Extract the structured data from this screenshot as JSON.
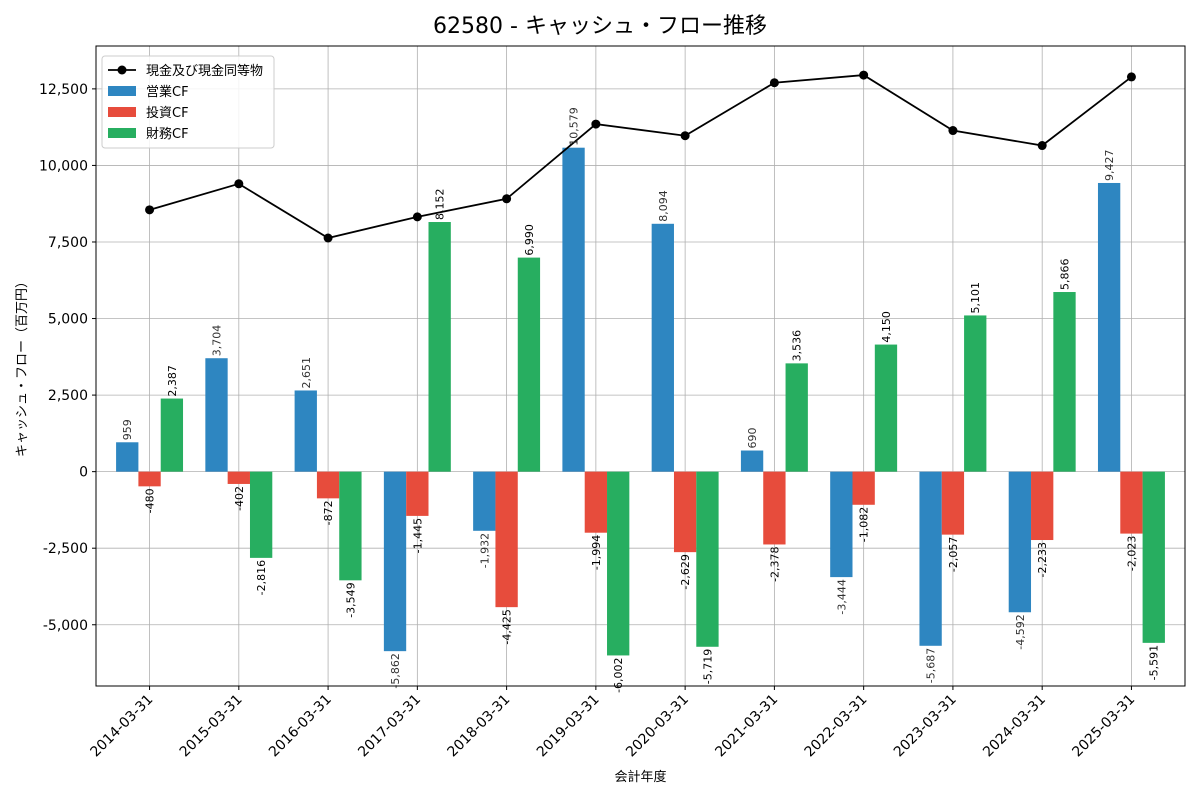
{
  "chart_data": {
    "type": "bar",
    "title": "62580 - キャッシュ・フロー推移",
    "xlabel": "会計年度",
    "ylabel": "キャッシュ・フロー（百万円）",
    "categories": [
      "2014-03-31",
      "2015-03-31",
      "2016-03-31",
      "2017-03-31",
      "2018-03-31",
      "2019-03-31",
      "2020-03-31",
      "2021-03-31",
      "2022-03-31",
      "2023-03-31",
      "2024-03-31",
      "2025-03-31"
    ],
    "ylim": [
      -7000,
      13900
    ],
    "yticks": [
      -5000,
      -2500,
      0,
      2500,
      5000,
      7500,
      10000,
      12500
    ],
    "ytick_labels": [
      "-5,000",
      "-2,500",
      "0",
      "2,500",
      "5,000",
      "7,500",
      "10,000",
      "12,500"
    ],
    "grid": true,
    "legend_position": "top-left",
    "series": [
      {
        "name": "営業CF",
        "kind": "bar",
        "color": "#2e86c1",
        "values": [
          959,
          3704,
          2651,
          -5862,
          -1932,
          10579,
          8094,
          690,
          -3444,
          -5687,
          -4592,
          9427
        ],
        "labels": [
          "959",
          "3,704",
          "2,651",
          "-5,862",
          "-1,932",
          "10,579",
          "8,094",
          "690",
          "-3,444",
          "-5,687",
          "-4,592",
          "9,427"
        ]
      },
      {
        "name": "投資CF",
        "kind": "bar",
        "color": "#e74c3c",
        "values": [
          -480,
          -402,
          -872,
          -1445,
          -4425,
          -1994,
          -2629,
          -2378,
          -1082,
          -2057,
          -2233,
          -2023
        ],
        "labels": [
          "-480",
          "-402",
          "-872",
          "-1,445",
          "-4,425",
          "-1,994",
          "-2,629",
          "-2,378",
          "-1,082",
          "-2,057",
          "-2,233",
          "-2,023"
        ]
      },
      {
        "name": "財務CF",
        "kind": "bar",
        "color": "#27ae60",
        "values": [
          2387,
          -2816,
          -3549,
          8152,
          6990,
          -6002,
          -5719,
          3536,
          4150,
          5101,
          5866,
          -5591
        ],
        "labels": [
          "2,387",
          "-2,816",
          "-3,549",
          "8,152",
          "6,990",
          "-6,002",
          "-5,719",
          "3,536",
          "4,150",
          "5,101",
          "5,866",
          "-5,591"
        ]
      }
    ],
    "line_series": {
      "name": "現金及び現金同等物",
      "color": "#000000",
      "values": [
        8550,
        9400,
        7630,
        8320,
        8910,
        11350,
        10970,
        12700,
        12950,
        11140,
        10650,
        12890
      ]
    }
  }
}
